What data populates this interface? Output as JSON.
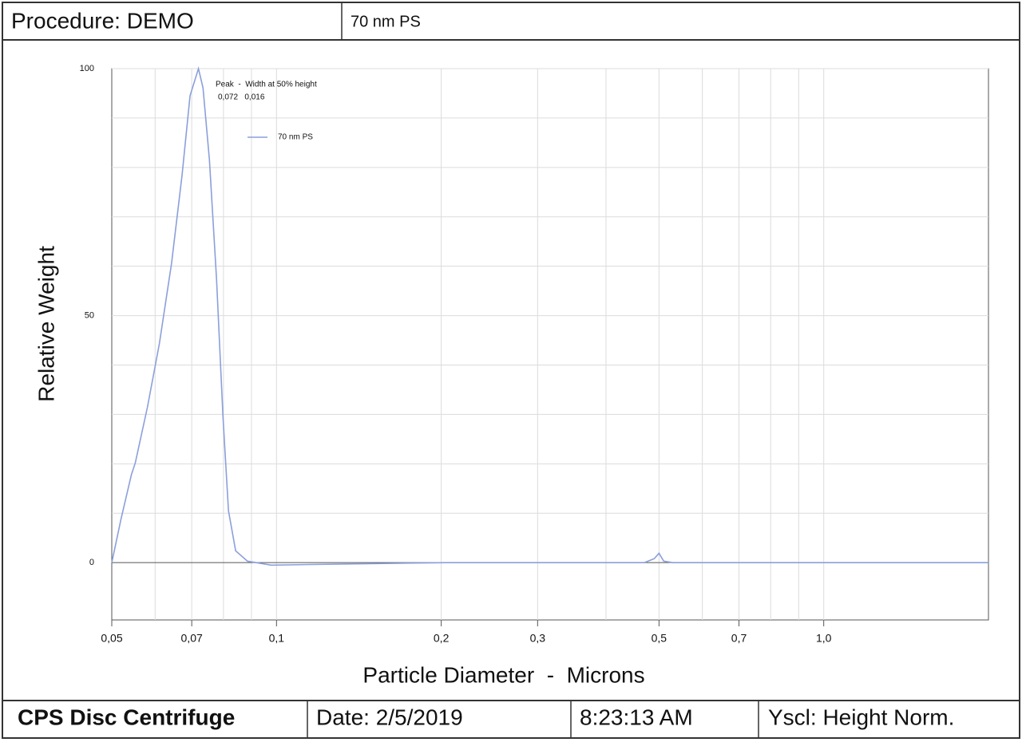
{
  "header": {
    "procedure": "Procedure: DEMO",
    "sample": "70 nm PS"
  },
  "footer": {
    "instrument": "CPS Disc Centrifuge",
    "date": "Date: 2/5/2019",
    "time": "8:23:13 AM",
    "yscale": "Yscl: Height Norm."
  },
  "chart_data": {
    "type": "line",
    "x_label": "Particle Diameter  -  Microns",
    "y_label": "Relative Weight",
    "annotations": [
      "Peak  -  Width at 50% height",
      "0,072   0,016"
    ],
    "x": [
      0.05,
      0.052,
      0.0543,
      0.0552,
      0.0581,
      0.0611,
      0.0643,
      0.0672,
      0.0695,
      0.072,
      0.0734,
      0.0754,
      0.0777,
      0.0798,
      0.0817,
      0.0842,
      0.0885,
      0.0978,
      0.128,
      0.204,
      0.47,
      0.49,
      0.5,
      0.51,
      0.53,
      2.0
    ],
    "series": [
      {
        "name": "70 nm PS",
        "color": "#8c9fdb",
        "values": [
          0,
          8.9,
          17.8,
          20.2,
          31.5,
          44.4,
          60.6,
          78.4,
          94.5,
          100,
          96.1,
          81.6,
          57.4,
          29.9,
          10.5,
          2.4,
          0.3,
          -0.5,
          -0.3,
          0,
          0,
          0.8,
          1.9,
          0.3,
          0,
          0
        ]
      }
    ],
    "xscale": "log",
    "xlim": [
      0.05,
      2.0
    ],
    "xticks": [
      {
        "value": 0.05,
        "label": "0,05"
      },
      {
        "value": 0.07,
        "label": "0,07"
      },
      {
        "value": 0.1,
        "label": "0,1"
      },
      {
        "value": 0.2,
        "label": "0,2"
      },
      {
        "value": 0.3,
        "label": "0,3"
      },
      {
        "value": 0.5,
        "label": "0,5"
      },
      {
        "value": 0.7,
        "label": "0,7"
      },
      {
        "value": 1.0,
        "label": "1,0"
      }
    ],
    "xgrid": [
      0.06,
      0.07,
      0.08,
      0.09,
      0.1,
      0.2,
      0.3,
      0.4,
      0.5,
      0.6,
      0.7,
      0.8,
      0.9,
      1.0
    ],
    "ylim": [
      -11.6,
      100
    ],
    "yticks": [
      0,
      50,
      100
    ],
    "ygrid": [
      10,
      20,
      30,
      40,
      60,
      70,
      80,
      90
    ],
    "grid": true,
    "legend": "top-left"
  }
}
